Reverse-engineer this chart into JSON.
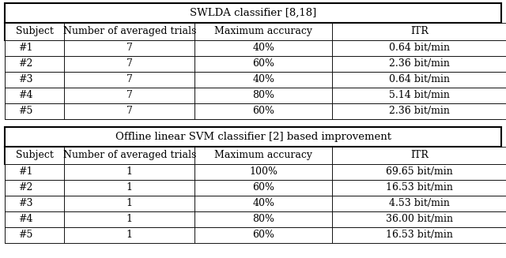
{
  "title1": "SWLDA classifier [8,18]",
  "title2": "Offline linear SVM classifier [2] based improvement",
  "headers": [
    "Subject",
    "Number of averaged trials",
    "Maximum accuracy",
    "ITR"
  ],
  "swlda_data": [
    [
      "#1",
      "7",
      "40%",
      "0.64 bit/min"
    ],
    [
      "#2",
      "7",
      "60%",
      "2.36 bit/min"
    ],
    [
      "#3",
      "7",
      "40%",
      "0.64 bit/min"
    ],
    [
      "#4",
      "7",
      "80%",
      "5.14 bit/min"
    ],
    [
      "#5",
      "7",
      "60%",
      "2.36 bit/min"
    ]
  ],
  "svm_data": [
    [
      "#1",
      "1",
      "100%",
      "69.65 bit/min"
    ],
    [
      "#2",
      "1",
      "60%",
      "16.53 bit/min"
    ],
    [
      "#3",
      "1",
      "40%",
      "4.53 bit/min"
    ],
    [
      "#4",
      "1",
      "80%",
      "36.00 bit/min"
    ],
    [
      "#5",
      "1",
      "60%",
      "16.53 bit/min"
    ]
  ],
  "font_size": 9.0,
  "title_font_size": 9.5,
  "lw_thick": 1.5,
  "lw_thin": 0.6
}
